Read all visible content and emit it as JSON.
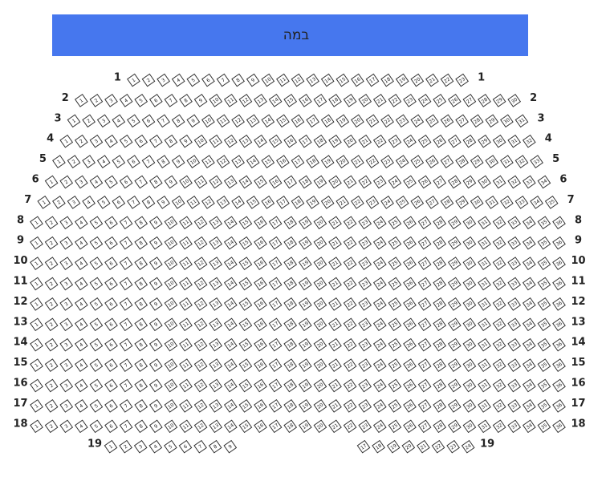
{
  "stage": {
    "label": "במה"
  },
  "rows": [
    {
      "label": "1",
      "seats": [
        1,
        2,
        3,
        4,
        5,
        6,
        7,
        8,
        9,
        10,
        11,
        12,
        13,
        14,
        15,
        16,
        17,
        18,
        19,
        20,
        21,
        22,
        23
      ]
    },
    {
      "label": "2",
      "seats": [
        1,
        2,
        3,
        4,
        5,
        6,
        7,
        8,
        9,
        10,
        11,
        12,
        13,
        14,
        15,
        16,
        17,
        18,
        19,
        20,
        21,
        22,
        23,
        24,
        25,
        26,
        27,
        28,
        29,
        30
      ]
    },
    {
      "label": "3",
      "seats": [
        1,
        2,
        3,
        4,
        5,
        6,
        7,
        8,
        9,
        10,
        11,
        12,
        13,
        14,
        15,
        16,
        17,
        18,
        19,
        20,
        21,
        22,
        23,
        24,
        25,
        26,
        27,
        28,
        29,
        30,
        31
      ]
    },
    {
      "label": "4",
      "seats": [
        1,
        2,
        3,
        4,
        5,
        6,
        7,
        8,
        9,
        10,
        11,
        12,
        13,
        14,
        15,
        16,
        17,
        18,
        19,
        20,
        21,
        22,
        23,
        24,
        25,
        26,
        27,
        28,
        29,
        30,
        31,
        32
      ]
    },
    {
      "label": "5",
      "seats": [
        1,
        2,
        3,
        4,
        5,
        6,
        7,
        8,
        9,
        10,
        11,
        12,
        13,
        14,
        15,
        16,
        17,
        18,
        19,
        20,
        21,
        22,
        23,
        24,
        25,
        26,
        27,
        28,
        29,
        30,
        31,
        32,
        33
      ]
    },
    {
      "label": "6",
      "seats": [
        1,
        2,
        3,
        4,
        5,
        6,
        7,
        8,
        9,
        10,
        11,
        12,
        13,
        14,
        15,
        16,
        17,
        18,
        19,
        20,
        21,
        22,
        23,
        24,
        25,
        26,
        27,
        28,
        29,
        30,
        31,
        32,
        33,
        34
      ]
    },
    {
      "label": "7",
      "seats": [
        1,
        2,
        3,
        4,
        5,
        6,
        7,
        8,
        9,
        10,
        11,
        12,
        13,
        14,
        15,
        16,
        17,
        18,
        19,
        20,
        21,
        22,
        23,
        24,
        25,
        26,
        27,
        28,
        29,
        30,
        31,
        32,
        33,
        34,
        35
      ]
    },
    {
      "label": "8",
      "seats": [
        1,
        2,
        3,
        4,
        5,
        6,
        7,
        8,
        9,
        10,
        11,
        12,
        13,
        14,
        15,
        16,
        17,
        18,
        19,
        20,
        21,
        22,
        23,
        24,
        25,
        26,
        27,
        28,
        29,
        30,
        31,
        32,
        33,
        34,
        35,
        36
      ]
    },
    {
      "label": "9",
      "seats": [
        1,
        2,
        3,
        4,
        5,
        6,
        7,
        8,
        9,
        10,
        11,
        12,
        13,
        14,
        15,
        16,
        17,
        18,
        19,
        20,
        21,
        22,
        23,
        24,
        25,
        26,
        27,
        28,
        29,
        30,
        31,
        32,
        33,
        34,
        35,
        36
      ]
    },
    {
      "label": "10",
      "seats": [
        1,
        2,
        3,
        4,
        5,
        6,
        7,
        8,
        9,
        10,
        11,
        12,
        13,
        14,
        15,
        16,
        17,
        18,
        19,
        20,
        21,
        22,
        23,
        24,
        25,
        26,
        27,
        28,
        29,
        30,
        31,
        32,
        33,
        34,
        35,
        36
      ]
    },
    {
      "label": "11",
      "seats": [
        1,
        2,
        3,
        4,
        5,
        6,
        7,
        8,
        9,
        10,
        11,
        12,
        13,
        14,
        15,
        16,
        17,
        18,
        19,
        20,
        21,
        22,
        23,
        24,
        25,
        26,
        27,
        28,
        29,
        30,
        31,
        32,
        33,
        34,
        35,
        36
      ]
    },
    {
      "label": "12",
      "seats": [
        1,
        2,
        3,
        4,
        5,
        6,
        7,
        8,
        9,
        10,
        11,
        12,
        13,
        14,
        15,
        16,
        17,
        18,
        19,
        20,
        21,
        22,
        23,
        24,
        25,
        26,
        27,
        28,
        29,
        30,
        31,
        32,
        33,
        34,
        35,
        36
      ]
    },
    {
      "label": "13",
      "seats": [
        1,
        2,
        3,
        4,
        5,
        6,
        7,
        8,
        9,
        10,
        11,
        12,
        13,
        14,
        15,
        16,
        17,
        18,
        19,
        20,
        21,
        22,
        23,
        24,
        25,
        26,
        27,
        28,
        29,
        30,
        31,
        32,
        33,
        34,
        35,
        36
      ]
    },
    {
      "label": "14",
      "seats": [
        1,
        2,
        3,
        4,
        5,
        6,
        7,
        8,
        9,
        10,
        11,
        12,
        13,
        14,
        15,
        16,
        17,
        18,
        19,
        20,
        21,
        22,
        23,
        24,
        25,
        26,
        27,
        28,
        29,
        30,
        31,
        32,
        33,
        34,
        35,
        36
      ]
    },
    {
      "label": "15",
      "seats": [
        1,
        2,
        3,
        4,
        5,
        6,
        7,
        8,
        9,
        10,
        11,
        12,
        13,
        14,
        15,
        16,
        17,
        18,
        19,
        20,
        21,
        22,
        23,
        24,
        25,
        26,
        27,
        28,
        29,
        30,
        31,
        32,
        33,
        34,
        35,
        36
      ]
    },
    {
      "label": "16",
      "seats": [
        1,
        2,
        3,
        4,
        5,
        6,
        7,
        8,
        9,
        10,
        11,
        12,
        13,
        14,
        15,
        16,
        17,
        18,
        19,
        20,
        21,
        22,
        23,
        24,
        25,
        26,
        27,
        28,
        29,
        30,
        31,
        32,
        33,
        34,
        35,
        36
      ]
    },
    {
      "label": "17",
      "seats": [
        1,
        2,
        3,
        4,
        5,
        6,
        7,
        8,
        9,
        10,
        11,
        12,
        13,
        14,
        15,
        16,
        17,
        18,
        19,
        20,
        21,
        22,
        23,
        24,
        25,
        26,
        27,
        28,
        29,
        30,
        31,
        32,
        33,
        34,
        35,
        36
      ]
    },
    {
      "label": "18",
      "seats": [
        1,
        2,
        3,
        4,
        5,
        6,
        7,
        8,
        9,
        10,
        11,
        12,
        13,
        14,
        15,
        16,
        17,
        18,
        19,
        20,
        21,
        22,
        23,
        24,
        25,
        26,
        27,
        28,
        29,
        30,
        31,
        32,
        33,
        34,
        35,
        36
      ]
    },
    {
      "label": "19",
      "seats": [
        1,
        2,
        3,
        4,
        5,
        6,
        7,
        8,
        9,
        17,
        18,
        19,
        20,
        21,
        22,
        23,
        24
      ]
    }
  ]
}
